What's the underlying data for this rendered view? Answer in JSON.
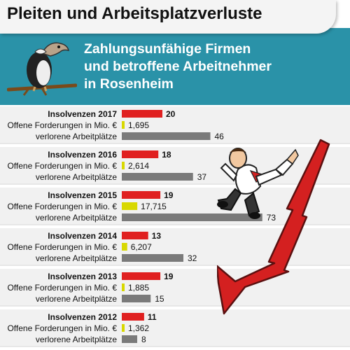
{
  "header": {
    "title": "Pleiten und Arbeitsplatzverluste",
    "subtitle_lines": [
      "Zahlungsunfähige Firmen",
      "und betroffene Arbeitnehmer",
      "in Rosenheim"
    ]
  },
  "colors": {
    "banner": "#2a92a8",
    "insolvency_bar": "#e02020",
    "claims_bar": "#d8d800",
    "jobs_bar": "#7a7a7a",
    "arrow": "#d42020"
  },
  "icons": [
    "vulture-icon",
    "falling-businessman-icon",
    "falling-arrow-icon"
  ],
  "chart_data": {
    "type": "bar",
    "orientation": "horizontal",
    "title": "Zahlungsunfähige Firmen und betroffene Arbeitnehmer in Rosenheim",
    "groups": [
      {
        "year_label": "Insolvenzen 2017",
        "insolvencies": 20,
        "claims": 1.695,
        "claims_label": "1,695",
        "jobs": 46
      },
      {
        "year_label": "Insolvenzen 2016",
        "insolvencies": 18,
        "claims": 2.614,
        "claims_label": "2,614",
        "jobs": 37
      },
      {
        "year_label": "Insolvenzen 2015",
        "insolvencies": 19,
        "claims": 17.715,
        "claims_label": "17,715",
        "jobs": 73
      },
      {
        "year_label": "Insolvenzen 2014",
        "insolvencies": 13,
        "claims": 6.207,
        "claims_label": "6,207",
        "jobs": 32
      },
      {
        "year_label": "Insolvenzen 2013",
        "insolvencies": 19,
        "claims": 1.885,
        "claims_label": "1,885",
        "jobs": 15
      },
      {
        "year_label": "Insolvenzen 2012",
        "insolvencies": 11,
        "claims": 1.362,
        "claims_label": "1,362",
        "jobs": 8
      }
    ],
    "row_labels": {
      "claims": "Offene Forderungen in Mio. €",
      "jobs": "verlorene Arbeitplätze"
    },
    "series": [
      {
        "name": "Insolvenzen",
        "values": [
          20,
          18,
          19,
          13,
          19,
          11
        ]
      },
      {
        "name": "Offene Forderungen in Mio. €",
        "values": [
          1.695,
          2.614,
          17.715,
          6.207,
          1.885,
          1.362
        ]
      },
      {
        "name": "verlorene Arbeitplätze",
        "values": [
          46,
          37,
          73,
          32,
          15,
          8
        ]
      }
    ]
  }
}
